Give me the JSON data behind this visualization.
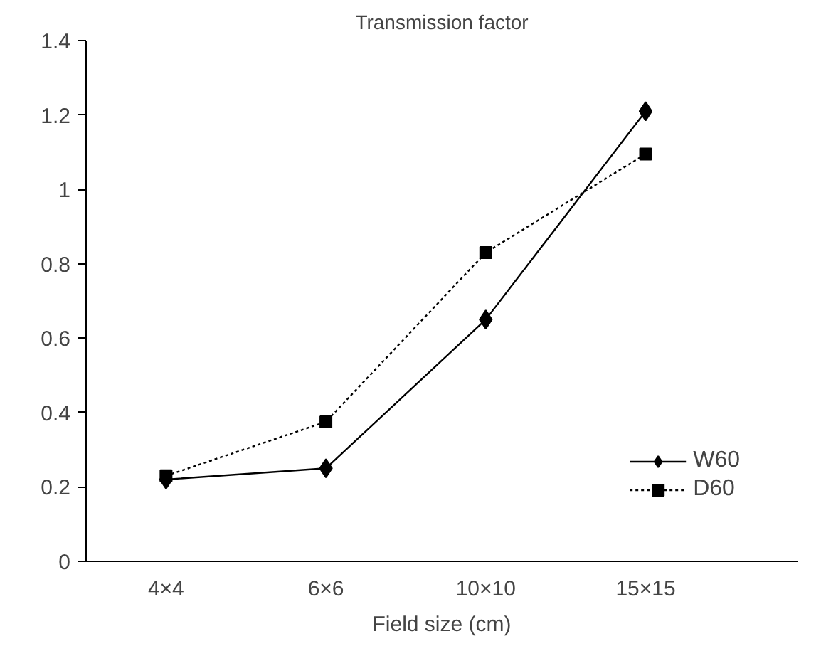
{
  "chart_data": {
    "type": "line",
    "title": "Transmission factor",
    "xlabel": "Field size (cm)",
    "categories": [
      "4×4",
      "6×6",
      "10×10",
      "15×15"
    ],
    "series": [
      {
        "name": "W60",
        "color": "#000000",
        "values": [
          0.22,
          0.25,
          0.65,
          1.21
        ],
        "marker": "diamond",
        "line_style": "solid"
      },
      {
        "name": "D60",
        "color": "#000000",
        "values": [
          0.23,
          0.375,
          0.83,
          1.095
        ],
        "marker": "square",
        "line_style": "dotted"
      }
    ],
    "ylim": [
      0,
      1.4
    ],
    "yticks": [
      0,
      0.2,
      0.4,
      0.6,
      0.8,
      1,
      1.2,
      1.4
    ],
    "grid": false,
    "legend": "bottom right"
  }
}
